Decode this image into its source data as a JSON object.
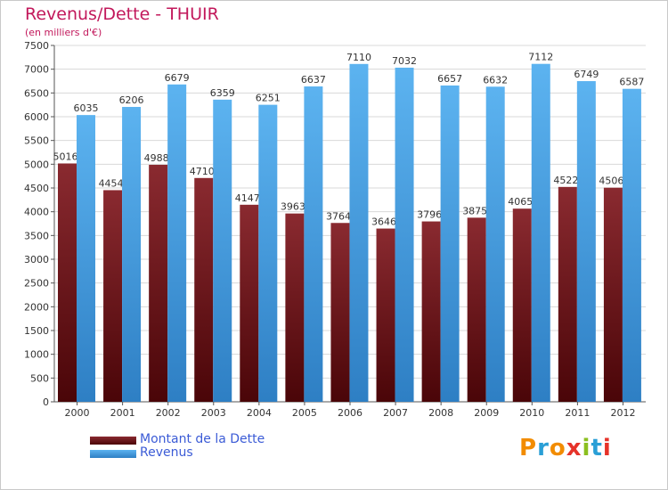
{
  "header": {
    "title": "Revenus/Dette - THUIR",
    "subtitle": "(en milliers d'€)"
  },
  "chart_data": {
    "type": "bar",
    "title": "Revenus/Dette - THUIR",
    "subtitle": "(en milliers d'€)",
    "xlabel": "",
    "ylabel": "",
    "categories": [
      "2000",
      "2001",
      "2002",
      "2003",
      "2004",
      "2005",
      "2006",
      "2007",
      "2008",
      "2009",
      "2010",
      "2011",
      "2012"
    ],
    "series": [
      {
        "name": "Montant de la Dette",
        "color": "#7a1f24",
        "values": [
          5016,
          4454,
          4988,
          4710,
          4147,
          3963,
          3764,
          3646,
          3796,
          3875,
          4065,
          4522,
          4506
        ]
      },
      {
        "name": "Revenus",
        "color": "#4aa3e6",
        "values": [
          6035,
          6206,
          6679,
          6359,
          6251,
          6637,
          7110,
          7032,
          6657,
          6632,
          7112,
          6749,
          6587
        ]
      }
    ],
    "ylim": [
      0,
      7500
    ],
    "yticks": [
      0,
      500,
      1000,
      1500,
      2000,
      2500,
      3000,
      3500,
      4000,
      4500,
      5000,
      5500,
      6000,
      6500,
      7000,
      7500
    ],
    "grid": true,
    "legend_position": "bottom-left"
  },
  "logo": {
    "letters": [
      "P",
      "r",
      "o",
      "x",
      "i",
      "t",
      "i"
    ],
    "colors": [
      "#f28c00",
      "#2a9fd6",
      "#f28c00",
      "#e6332a",
      "#8bbf1f",
      "#2a9fd6",
      "#e6332a"
    ]
  }
}
